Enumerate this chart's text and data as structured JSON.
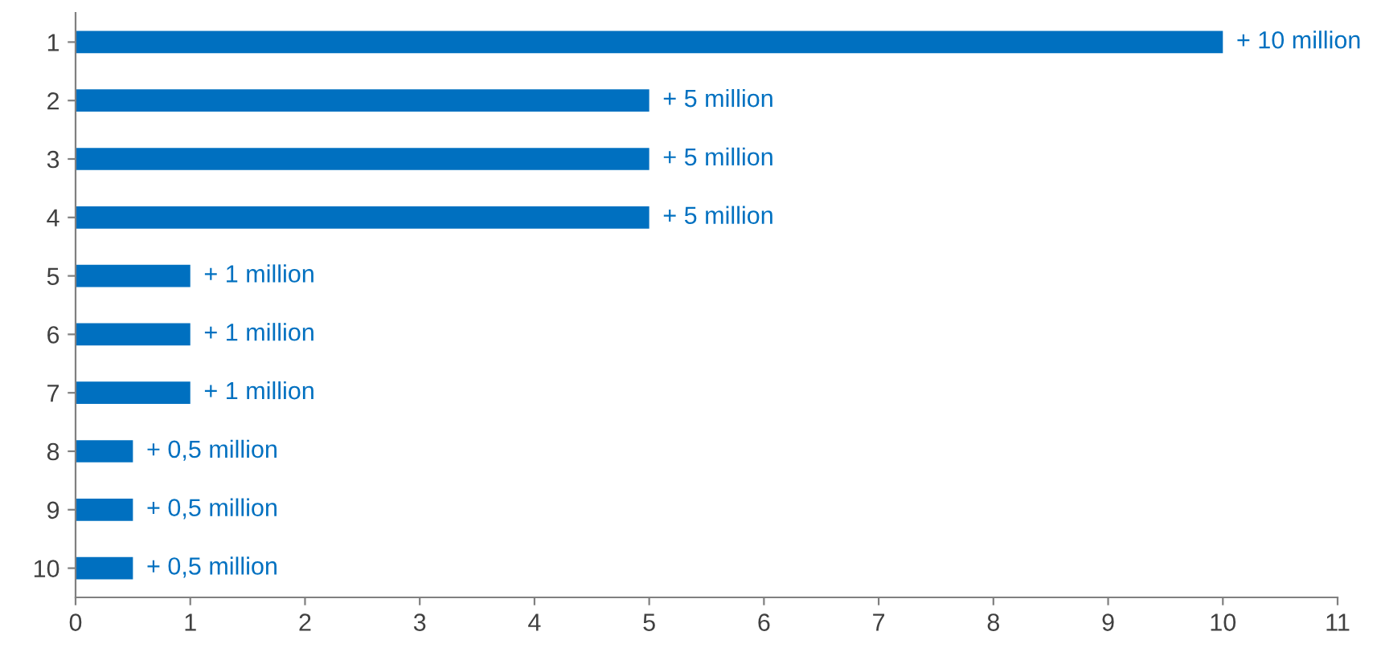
{
  "chart_data": {
    "type": "bar",
    "orientation": "horizontal",
    "categories": [
      "1",
      "2",
      "3",
      "4",
      "5",
      "6",
      "7",
      "8",
      "9",
      "10"
    ],
    "values": [
      10,
      5,
      5,
      5,
      1,
      1,
      1,
      0.5,
      0.5,
      0.5
    ],
    "value_labels": [
      "+ 10 million",
      "+ 5 million",
      "+ 5 million",
      "+ 5 million",
      "+ 1 million",
      "+ 1 million",
      "+ 1 million",
      "+ 0,5 million",
      "+ 0,5 million",
      "+ 0,5 million"
    ],
    "color": "#0070c0",
    "xlim": [
      0,
      11
    ],
    "xticks": [
      0,
      1,
      2,
      3,
      4,
      5,
      6,
      7,
      8,
      9,
      10,
      11
    ],
    "grid": false,
    "legend": false
  }
}
